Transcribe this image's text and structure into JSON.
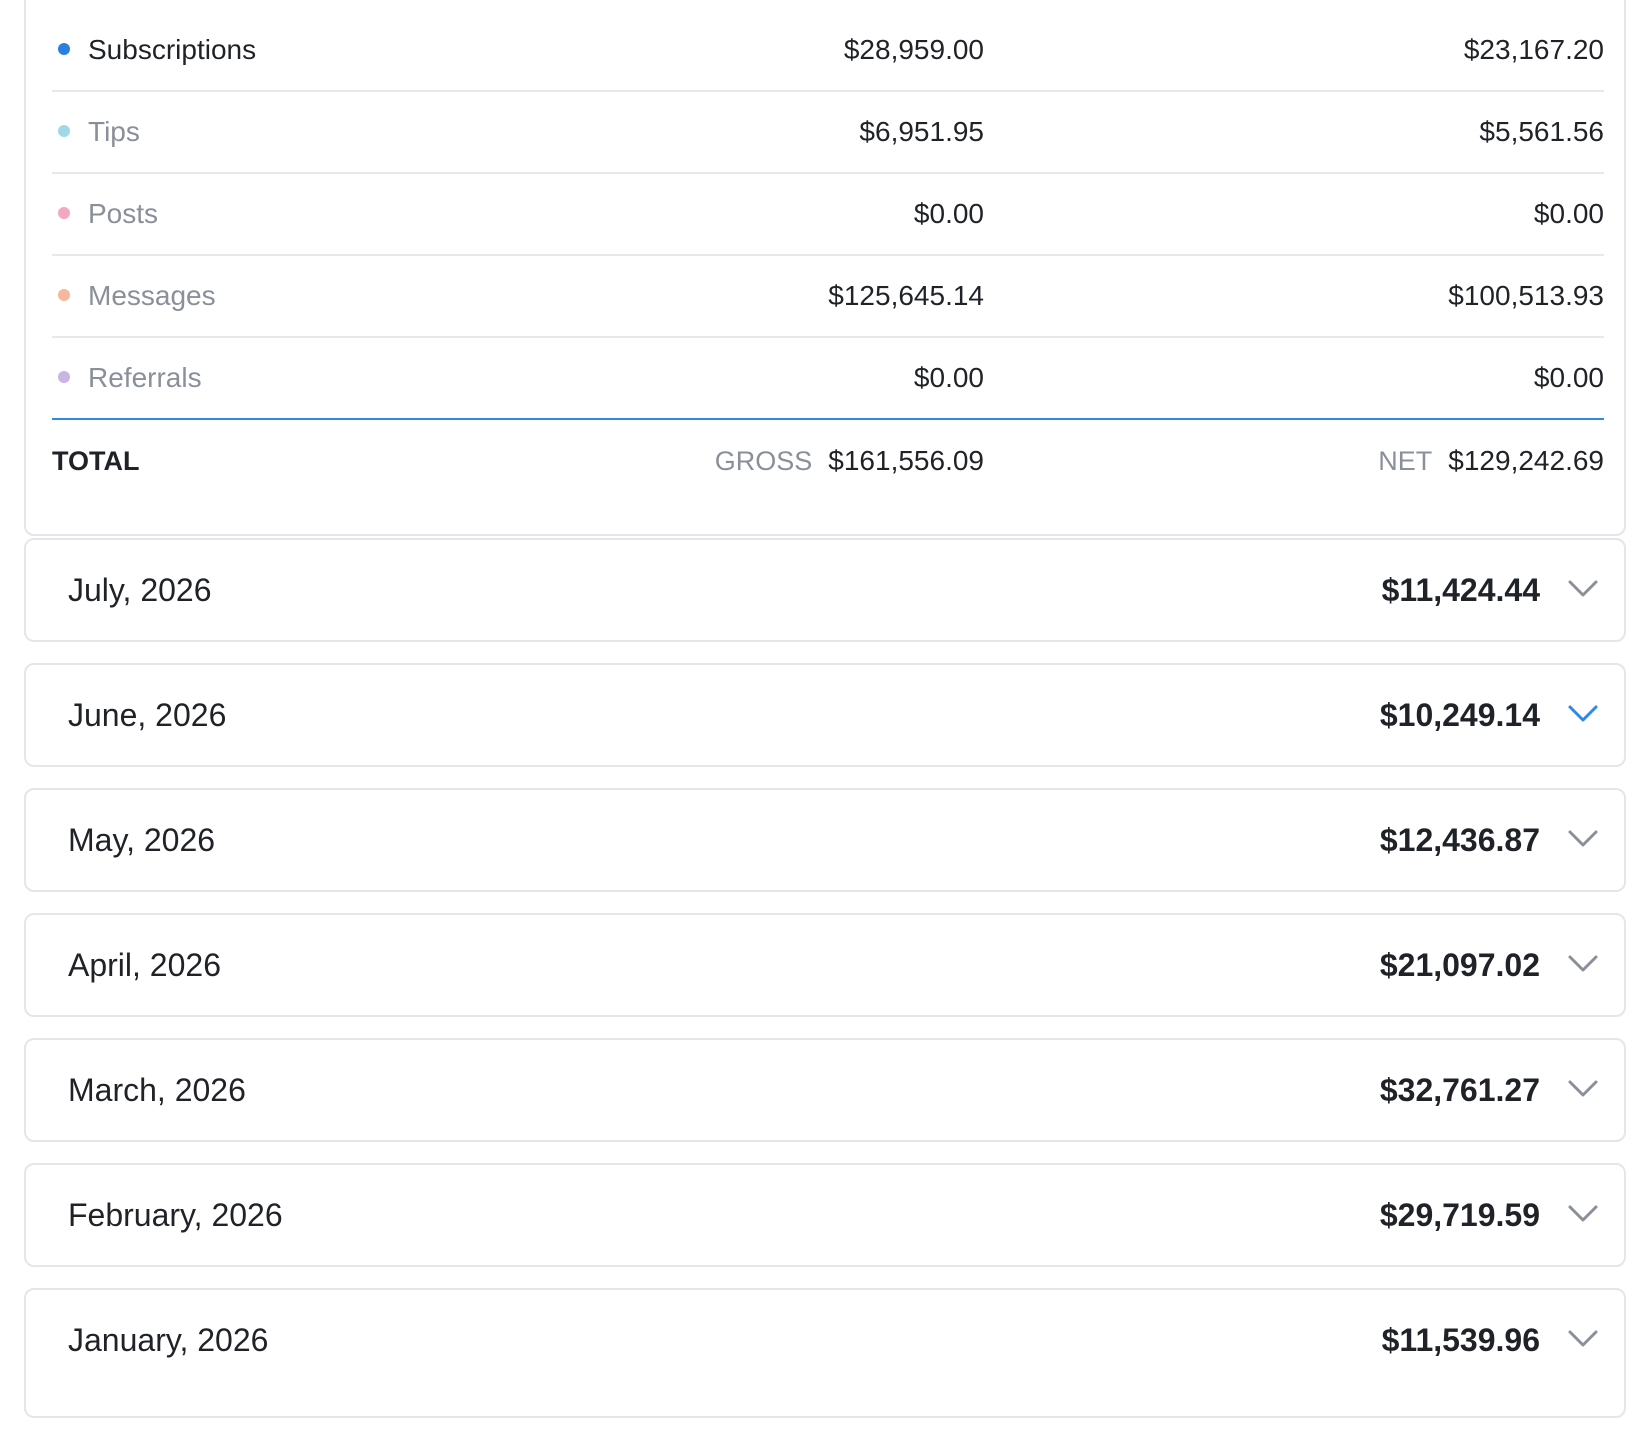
{
  "summary": {
    "rows": [
      {
        "label": "Subscriptions",
        "gross": "$28,959.00",
        "net": "$23,167.20",
        "color": "#2b7fe0"
      },
      {
        "label": "Tips",
        "gross": "$6,951.95",
        "net": "$5,561.56",
        "color": "#9fd8e6"
      },
      {
        "label": "Posts",
        "gross": "$0.00",
        "net": "$0.00",
        "color": "#f2a9bf"
      },
      {
        "label": "Messages",
        "gross": "$125,645.14",
        "net": "$100,513.93",
        "color": "#f6b79c"
      },
      {
        "label": "Referrals",
        "gross": "$0.00",
        "net": "$0.00",
        "color": "#c9b5e2"
      }
    ],
    "total": {
      "label": "TOTAL",
      "gross_tag": "GROSS",
      "gross": "$161,556.09",
      "net_tag": "NET",
      "net": "$129,242.69"
    },
    "divider_color": "#2b8ae6"
  },
  "months": [
    {
      "label": "July, 2026",
      "amount": "$11,424.44",
      "expanded": false
    },
    {
      "label": "June, 2026",
      "amount": "$10,249.14",
      "expanded": true
    },
    {
      "label": "May, 2026",
      "amount": "$12,436.87",
      "expanded": false
    },
    {
      "label": "April, 2026",
      "amount": "$21,097.02",
      "expanded": false
    },
    {
      "label": "March, 2026",
      "amount": "$32,761.27",
      "expanded": false
    },
    {
      "label": "February, 2026",
      "amount": "$29,719.59",
      "expanded": false
    },
    {
      "label": "January, 2026",
      "amount": "$11,539.96",
      "expanded": false
    }
  ],
  "icons": {
    "chevron": "chevron-down-icon",
    "chevron_color": "#8a9099",
    "chevron_active_color": "#2b8ae6"
  }
}
